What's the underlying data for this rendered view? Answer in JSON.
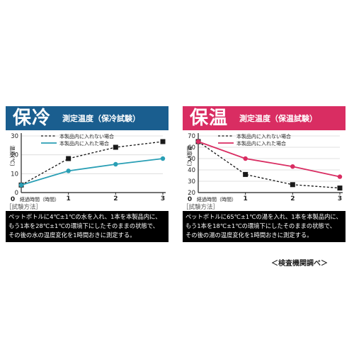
{
  "chart_data": [
    {
      "type": "line",
      "title": "保冷",
      "subtitle": "測定温度（保冷試験）",
      "ylabel": "温度(℃)",
      "xlabel": "経過時間（時間）",
      "x": [
        0,
        1,
        2,
        3
      ],
      "xticks": [
        "0",
        "1",
        "2",
        "3"
      ],
      "yticks": [
        "0",
        "10",
        "20",
        "30"
      ],
      "ylim": [
        0,
        30
      ],
      "xlim": [
        0,
        3
      ],
      "legend_position": "top-right",
      "series": [
        {
          "name": "本製品内に入れない場合",
          "style": "dashed",
          "color": "#111111",
          "values": [
            4,
            18,
            24,
            27
          ]
        },
        {
          "name": "本製品内に入れた場合",
          "style": "solid",
          "color": "#2a9fb5",
          "values": [
            4,
            11.5,
            15,
            18
          ]
        }
      ]
    },
    {
      "type": "line",
      "title": "保温",
      "subtitle": "測定温度（保温試験）",
      "ylabel": "温度(℃)",
      "xlabel": "経過時間（時間）",
      "x": [
        0,
        1,
        2,
        3
      ],
      "xticks": [
        "0",
        "1",
        "2",
        "3"
      ],
      "yticks": [
        "20",
        "30",
        "40",
        "50",
        "60",
        "70"
      ],
      "ylim": [
        20,
        70
      ],
      "xlim": [
        0,
        3
      ],
      "legend_position": "top-right",
      "series": [
        {
          "name": "本製品内に入れない場合",
          "style": "dashed",
          "color": "#111111",
          "values": [
            65,
            36,
            27,
            24
          ]
        },
        {
          "name": "本製品内に入れた場合",
          "style": "solid",
          "color": "#d92d62",
          "values": [
            65,
            50,
            43,
            34
          ]
        }
      ]
    }
  ],
  "panels": {
    "cold": {
      "banner_big": "保冷",
      "banner_small": "測定温度（保冷試験）",
      "method_label": "［試験方法］",
      "method_lines": [
        "ペットボトルに4℃±1℃の水を入れ、1本を本製品内に、",
        "もう1本を28℃±1℃の環境下にしたそのままの状態で、",
        "その後の水の温度変化を1時間おきに測定する。"
      ]
    },
    "warm": {
      "banner_big": "保温",
      "banner_small": "測定温度（保温試験）",
      "method_label": "［試験方法］",
      "method_lines": [
        "ペットボトルに65℃±1℃の湯を入れ、1本を本製品内に、",
        "もう1本を18℃±1℃の環境下にしたそのままの状態で、",
        "その後の湯の温度変化を1時間おきに測定する。"
      ]
    }
  },
  "source_note": "＜検査機関調べ＞"
}
